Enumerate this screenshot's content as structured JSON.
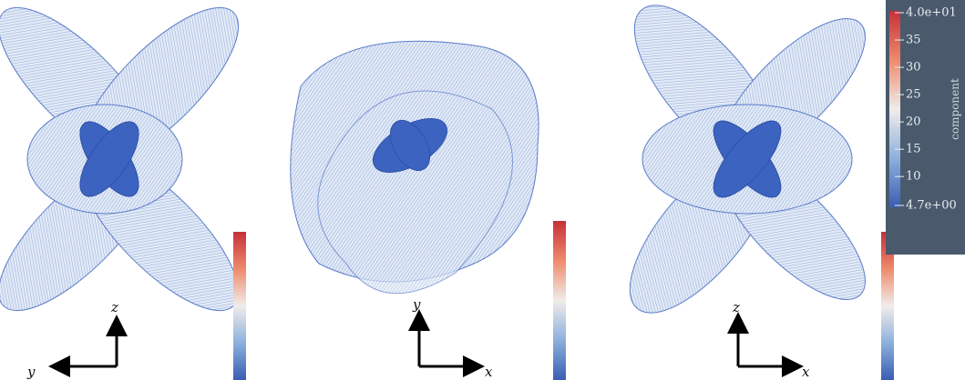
{
  "panels": [
    {
      "axis_up": "z",
      "axis_side": "y"
    },
    {
      "axis_up": "y",
      "axis_side": "x"
    },
    {
      "axis_up": "z",
      "axis_side": "x"
    }
  ],
  "colorbar": {
    "title": "component",
    "lim": [
      4.7,
      40
    ],
    "ticks": [
      {
        "value": 40,
        "label": "4.0e+01"
      },
      35,
      30,
      25,
      20,
      15,
      10,
      {
        "value": 4.7,
        "label": "4.7e+00"
      }
    ]
  }
}
